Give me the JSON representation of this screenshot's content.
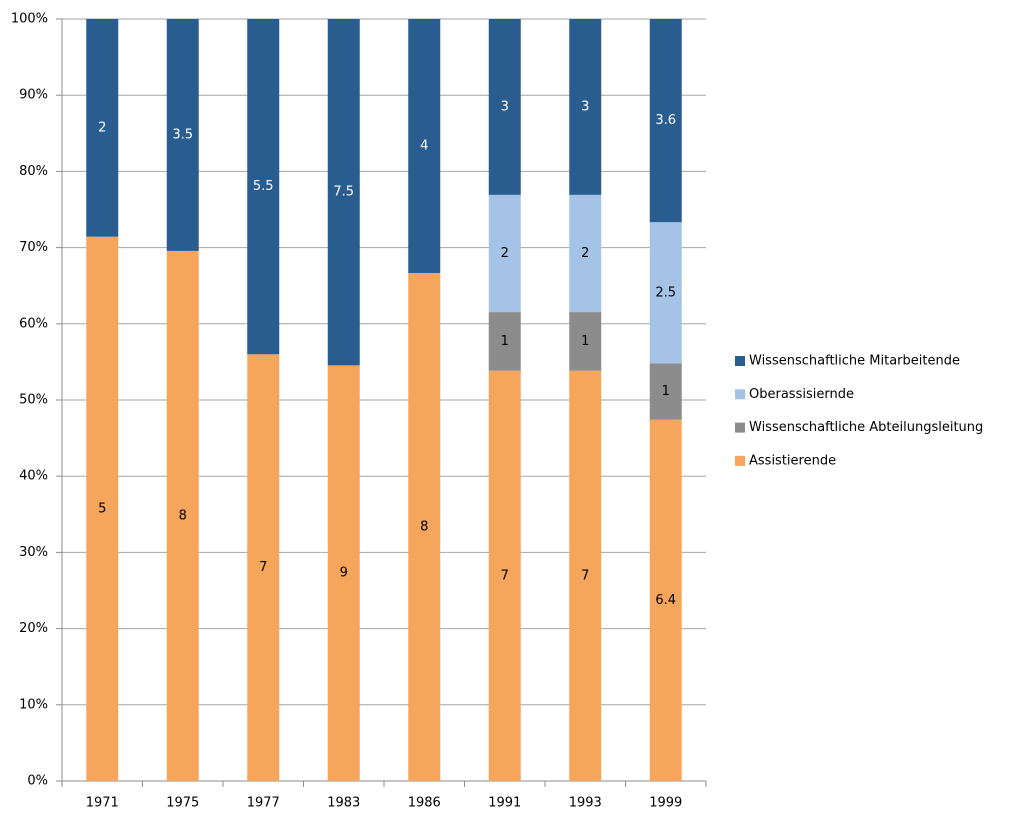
{
  "chart_data": {
    "type": "bar",
    "stack": "percent",
    "categories": [
      "1971",
      "1975",
      "1977",
      "1983",
      "1986",
      "1991",
      "1993",
      "1999"
    ],
    "series": [
      {
        "name": "Assistierende",
        "color": "#f6a55c",
        "values": [
          5,
          8,
          7,
          9,
          8,
          7,
          7,
          6.4
        ]
      },
      {
        "name": "Wissenschaftliche Abteilungsleitung",
        "color": "#8c8c8c",
        "values": [
          null,
          null,
          null,
          null,
          null,
          1,
          1,
          1
        ]
      },
      {
        "name": "Oberassisiernde",
        "color": "#a4c3e6",
        "values": [
          null,
          null,
          null,
          null,
          null,
          2,
          2,
          2.5
        ]
      },
      {
        "name": "Wissenschaftliche Mitarbeitende",
        "color": "#2a5d8f",
        "values": [
          2,
          3.5,
          5.5,
          7.5,
          4,
          3,
          3,
          3.6
        ]
      }
    ],
    "ylim": [
      0,
      100
    ],
    "yticks": [
      {
        "value": 0,
        "label": "0%"
      },
      {
        "value": 10,
        "label": "10%"
      },
      {
        "value": 20,
        "label": "20%"
      },
      {
        "value": 30,
        "label": "30%"
      },
      {
        "value": 40,
        "label": "40%"
      },
      {
        "value": 50,
        "label": "50%"
      },
      {
        "value": 60,
        "label": "60%"
      },
      {
        "value": 70,
        "label": "70%"
      },
      {
        "value": 80,
        "label": "80%"
      },
      {
        "value": 90,
        "label": "90%"
      },
      {
        "value": 100,
        "label": "100%"
      }
    ],
    "grid": true,
    "legend": "right"
  }
}
